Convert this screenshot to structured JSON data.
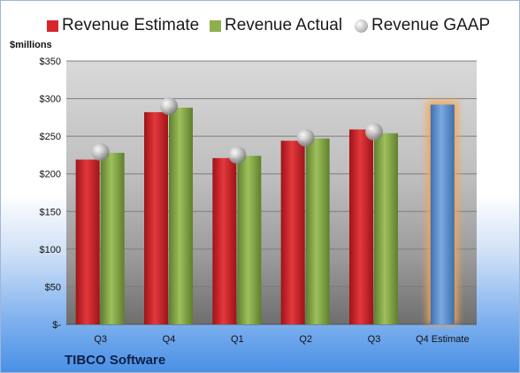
{
  "chart_data": {
    "type": "bar",
    "categories": [
      "Q3",
      "Q4",
      "Q1",
      "Q2",
      "Q3",
      "Q4 Estimate"
    ],
    "series": [
      {
        "name": "Revenue Estimate",
        "color": "#d7262b",
        "values": [
          219,
          282,
          221,
          244,
          259,
          null
        ]
      },
      {
        "name": "Revenue Actual",
        "color": "#8db04d",
        "values": [
          228,
          288,
          224,
          247,
          254,
          null
        ]
      },
      {
        "name": "Revenue GAAP",
        "color": "#b8b8b8",
        "marker": "sphere",
        "values": [
          229,
          290,
          225,
          248,
          256,
          null
        ]
      },
      {
        "name": "",
        "color": "#6a9ad6",
        "highlight": "#f6a651",
        "values": [
          null,
          null,
          null,
          null,
          null,
          292
        ]
      }
    ],
    "ylabel": "$millions",
    "yticks": [
      "$-",
      "$50",
      "$100",
      "$150",
      "$200",
      "$250",
      "$300",
      "$350"
    ],
    "ylim": [
      0,
      350
    ],
    "grid": true,
    "legend": "top"
  },
  "footer": "TIBCO Software"
}
